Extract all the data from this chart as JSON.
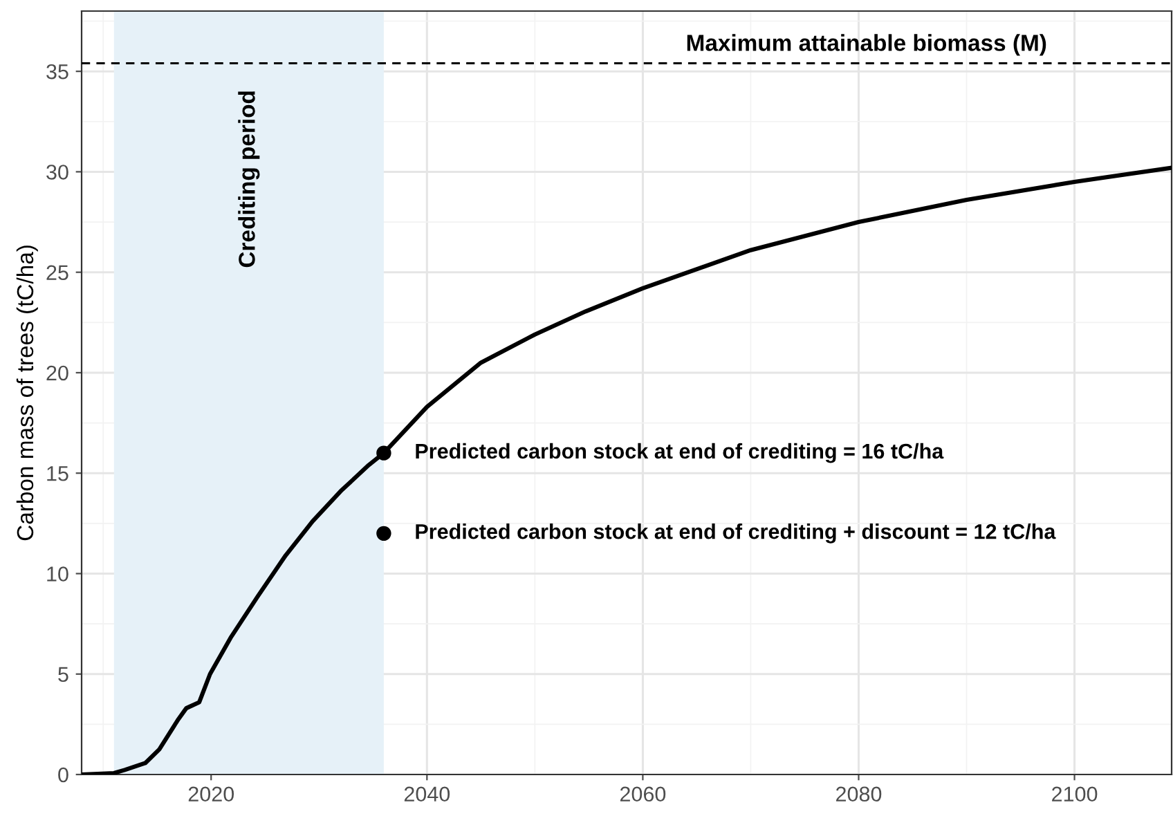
{
  "chart_data": {
    "type": "line",
    "ylabel": "Carbon mass of trees (tC/ha)",
    "xlim": [
      2008,
      2109
    ],
    "ylim": [
      0,
      38
    ],
    "xticks": [
      2020,
      2040,
      2060,
      2080,
      2100
    ],
    "yticks": [
      0,
      5,
      10,
      15,
      20,
      25,
      30,
      35
    ],
    "grid": true,
    "legend": false,
    "series": [
      {
        "color": "#000000",
        "x": [
          2008,
          2011,
          2012,
          2013.9,
          2015.2,
          2016.9,
          2017.7,
          2018.9,
          2019.9,
          2021.8,
          2024.3,
          2026.9,
          2029.4,
          2032,
          2034.6,
          2036,
          2040,
          2045,
          2050,
          2054.7,
          2060,
          2070,
          2080,
          2090,
          2100,
          2109
        ],
        "values": [
          0,
          0.07,
          0.23,
          0.57,
          1.25,
          2.7,
          3.3,
          3.6,
          5.0,
          6.8,
          8.85,
          10.9,
          12.6,
          14.1,
          15.4,
          16,
          18.3,
          20.5,
          21.9,
          23.05,
          24.2,
          26.1,
          27.5,
          28.6,
          29.5,
          30.2
        ]
      },
      {
        "type": "scatter",
        "color": "#000000",
        "x": [
          2036,
          2036
        ],
        "values": [
          16,
          12
        ],
        "marker": "circle"
      }
    ],
    "ref_lines": [
      {
        "axis": "y",
        "value": 35.4,
        "label": "Maximum attainable biomass (M)",
        "color": "#000000",
        "line_style": "dashed"
      }
    ],
    "bands": [
      {
        "axis": "x",
        "from": 2011,
        "to": 2036,
        "label": "Crediting period",
        "color": "#e6f1f8"
      }
    ],
    "annotations": [
      {
        "text": "Predicted carbon stock at end of crediting = 16 tC/ha",
        "x": 2036,
        "y": 16
      },
      {
        "text": "Predicted carbon stock at end of crediting + discount = 12 tC/ha",
        "x": 2036,
        "y": 12
      }
    ]
  }
}
